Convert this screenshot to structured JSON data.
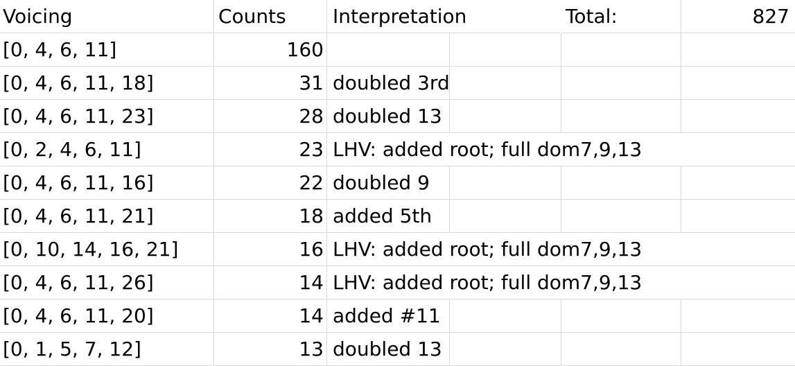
{
  "header": {
    "voicing": "Voicing",
    "counts": "Counts",
    "interpretation": "Interpretation",
    "total_label": "Total:",
    "total_value": "827"
  },
  "rows": [
    {
      "voicing": "[0, 4, 6, 11]",
      "count": "160",
      "interpretation": ""
    },
    {
      "voicing": "[0, 4, 6, 11, 18]",
      "count": "31",
      "interpretation": "doubled 3rd"
    },
    {
      "voicing": "[0, 4, 6, 11, 23]",
      "count": "28",
      "interpretation": "doubled 13"
    },
    {
      "voicing": "[0, 2, 4, 6, 11]",
      "count": "23",
      "interpretation": "LHV: added root; full dom7,9,13"
    },
    {
      "voicing": "[0, 4, 6, 11, 16]",
      "count": "22",
      "interpretation": "doubled 9"
    },
    {
      "voicing": "[0, 4, 6, 11, 21]",
      "count": "18",
      "interpretation": "added 5th"
    },
    {
      "voicing": "[0, 10, 14, 16, 21]",
      "count": "16",
      "interpretation": "LHV: added root; full dom7,9,13"
    },
    {
      "voicing": "[0, 4, 6, 11, 26]",
      "count": "14",
      "interpretation": "LHV: added root; full dom7,9,13"
    },
    {
      "voicing": "[0, 4, 6, 11, 20]",
      "count": "14",
      "interpretation": "added #11"
    },
    {
      "voicing": "[0, 1, 5, 7, 12]",
      "count": "13",
      "interpretation": "doubled 13"
    }
  ]
}
